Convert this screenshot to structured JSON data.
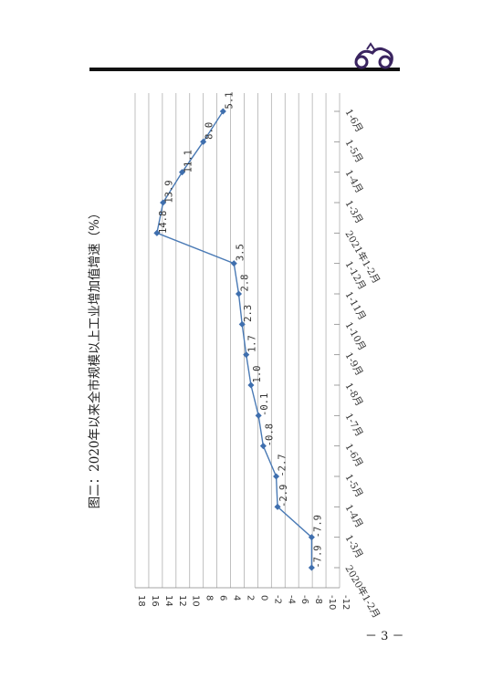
{
  "page": {
    "number": "－ 3 －"
  },
  "chart_data": {
    "type": "line",
    "orientation": "rotated-90-clockwise",
    "title": "图二：2020年以来全市规模以上工业增加值增速（%）",
    "xlabel": "",
    "ylabel": "",
    "categories": [
      "2020年1-2月",
      "1-3月",
      "1-4月",
      "1-5月",
      "1-6月",
      "1-7月",
      "1-8月",
      "1-9月",
      "1-10月",
      "1-11月",
      "1-12月",
      "2021年1-2月",
      "1-3月",
      "1-4月",
      "1-5月",
      "1-6月"
    ],
    "series": [
      {
        "values": [
          -7.9,
          -7.9,
          -2.9,
          -2.7,
          -0.8,
          -0.1,
          1.0,
          1.7,
          2.3,
          2.8,
          3.5,
          14.8,
          13.9,
          11.1,
          8.0,
          5.1
        ],
        "data_labels": [
          "-7.9",
          "-7.9",
          "-2.9",
          "-2.7",
          "-0.8",
          "-0.1",
          "1.0",
          "1.7",
          "2.3",
          "2.8",
          "3.5",
          "14.8",
          "13.9",
          "11.1",
          "8.0",
          "5.1"
        ]
      }
    ],
    "ylim": [
      -12,
      18
    ],
    "yticks": [
      -12,
      -10,
      -8,
      -6,
      -4,
      -2,
      0,
      2,
      4,
      6,
      8,
      10,
      12,
      14,
      16,
      18
    ],
    "ytick_labels": [
      "-12",
      "-10",
      "-8",
      "-6",
      "-4",
      "-2",
      "0",
      "2",
      "4",
      "6",
      "8",
      "10",
      "12",
      "14",
      "16",
      "18"
    ],
    "grid": true,
    "legend": "none",
    "colors": {
      "line": "#4a7ab5",
      "marker": "#3f6fae",
      "grid": "#b0b0b0",
      "axis": "#888888",
      "text": "#333333"
    }
  }
}
